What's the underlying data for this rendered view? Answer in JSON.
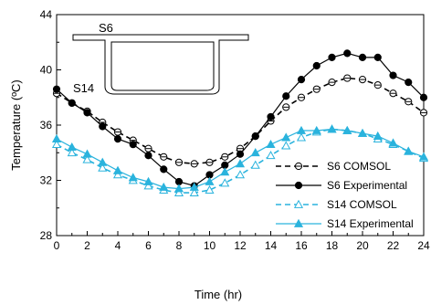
{
  "chart_data": {
    "type": "line",
    "xlabel": "Time (hr)",
    "ylabel": "Temperature (ºC)",
    "xlim": [
      0,
      24
    ],
    "ylim": [
      28,
      44
    ],
    "xticks": [
      "0",
      "2",
      "4",
      "6",
      "8",
      "10",
      "12",
      "14",
      "16",
      "18",
      "20",
      "22",
      "24"
    ],
    "yticks": [
      "28",
      "32",
      "36",
      "40",
      "44"
    ],
    "legend_position": "bottom-right",
    "inset_labels": {
      "top": "S6",
      "bottom": "S14"
    },
    "series": [
      {
        "name": "S6 COMSOL",
        "color": "#000000",
        "line": "dashed",
        "marker": "open-circle",
        "x": [
          0,
          1,
          2,
          3,
          4,
          5,
          6,
          7,
          8,
          9,
          10,
          11,
          12,
          13,
          14,
          15,
          16,
          17,
          18,
          19,
          20,
          21,
          22,
          23,
          24
        ],
        "y": [
          38.3,
          37.6,
          37.0,
          36.2,
          35.5,
          34.9,
          34.3,
          33.7,
          33.3,
          33.2,
          33.3,
          33.7,
          34.3,
          35.2,
          36.3,
          37.3,
          38.0,
          38.6,
          39.1,
          39.4,
          39.3,
          38.9,
          38.3,
          37.7,
          36.9
        ]
      },
      {
        "name": "S6 Experimental",
        "color": "#000000",
        "line": "solid",
        "marker": "filled-circle",
        "x": [
          0,
          1,
          2,
          3,
          4,
          5,
          6,
          7,
          8,
          9,
          10,
          11,
          12,
          13,
          14,
          15,
          16,
          17,
          18,
          19,
          20,
          21,
          22,
          23,
          24
        ],
        "y": [
          38.6,
          37.6,
          36.9,
          35.9,
          35.0,
          34.6,
          33.8,
          32.8,
          31.9,
          31.6,
          32.4,
          33.1,
          33.9,
          35.2,
          36.6,
          38.1,
          39.3,
          40.3,
          40.9,
          41.2,
          40.9,
          40.9,
          39.6,
          39.1,
          38.0
        ]
      },
      {
        "name": "S14 COMSOL",
        "color": "#2ab3dd",
        "line": "dashed",
        "marker": "open-triangle",
        "x": [
          0,
          1,
          2,
          3,
          4,
          5,
          6,
          7,
          8,
          9,
          10,
          11,
          12,
          13,
          14,
          15,
          16,
          17,
          18,
          19,
          20,
          21,
          22,
          23,
          24
        ],
        "y": [
          34.6,
          34.0,
          33.5,
          32.9,
          32.4,
          32.0,
          31.6,
          31.3,
          31.1,
          31.1,
          31.3,
          31.8,
          32.4,
          33.1,
          33.8,
          34.5,
          35.1,
          35.5,
          35.7,
          35.6,
          35.4,
          35.0,
          34.6,
          34.1,
          33.6
        ]
      },
      {
        "name": "S14 Experimental",
        "color": "#2ab3dd",
        "line": "solid",
        "marker": "filled-triangle",
        "x": [
          0,
          1,
          2,
          3,
          4,
          5,
          6,
          7,
          8,
          9,
          10,
          11,
          12,
          13,
          14,
          15,
          16,
          17,
          18,
          19,
          20,
          21,
          22,
          23,
          24
        ],
        "y": [
          35.0,
          34.4,
          33.9,
          33.3,
          32.7,
          32.2,
          31.9,
          31.5,
          31.4,
          31.5,
          31.9,
          32.6,
          33.2,
          34.0,
          34.6,
          35.1,
          35.6,
          35.6,
          35.7,
          35.6,
          35.4,
          35.2,
          34.7,
          34.1,
          33.7
        ]
      }
    ]
  }
}
